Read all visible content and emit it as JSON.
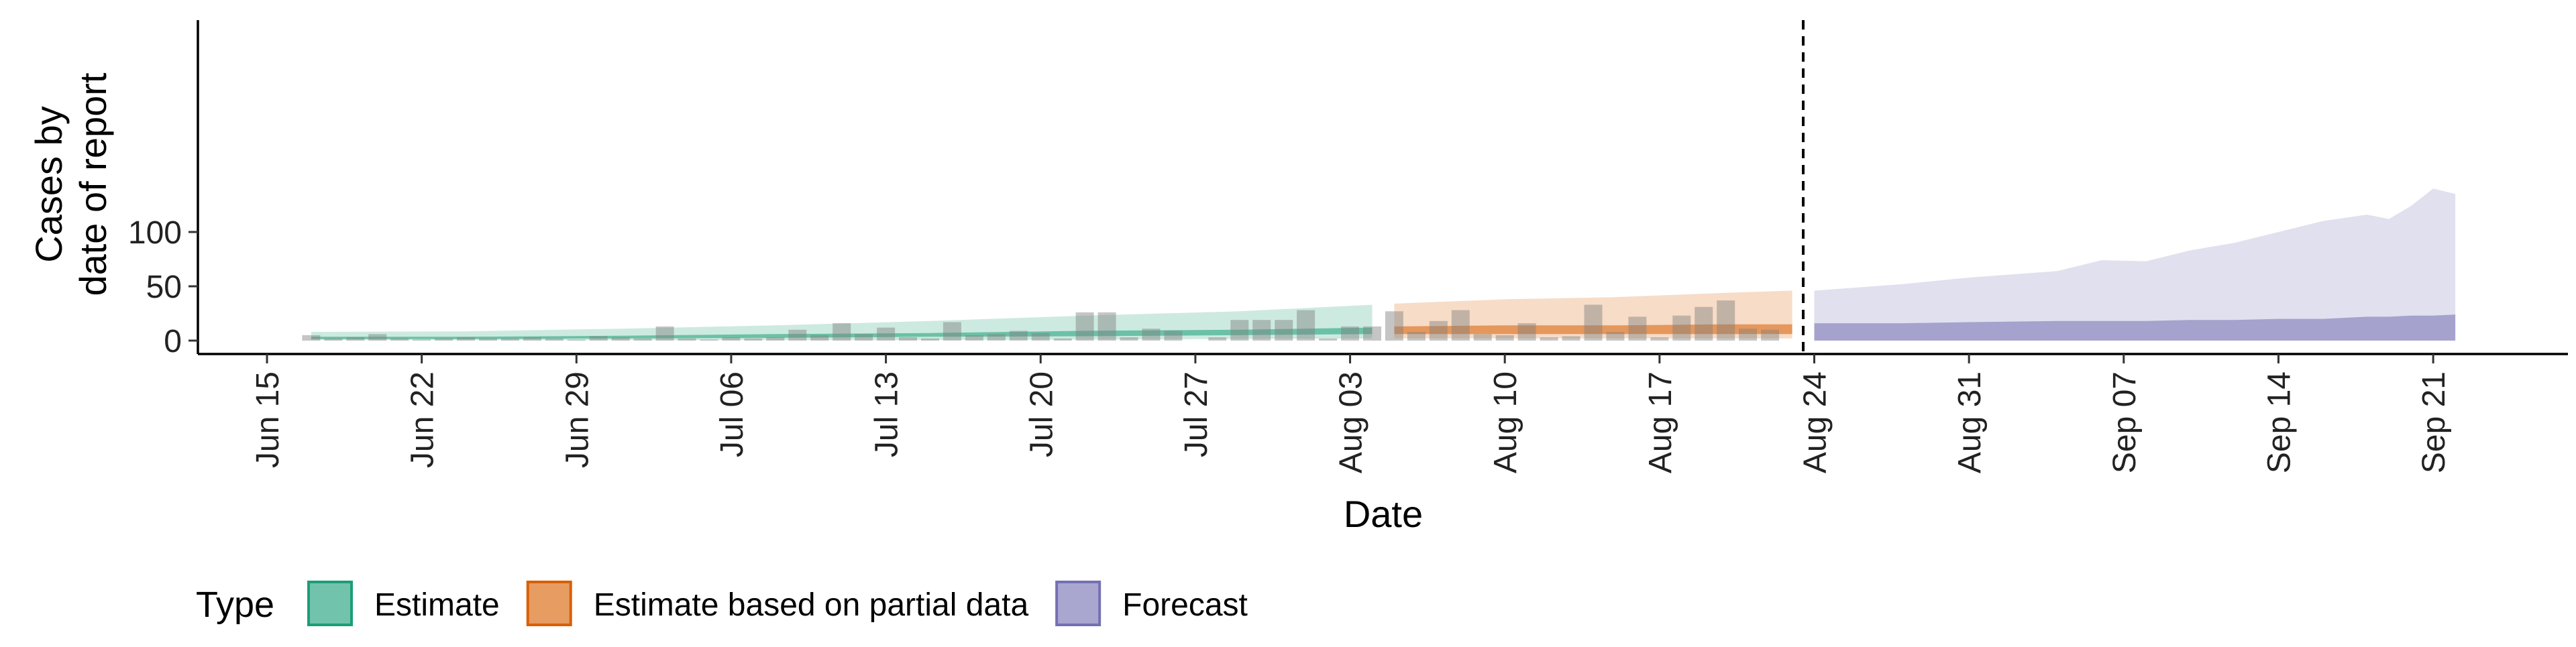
{
  "chart_data": {
    "type": "area",
    "xlabel": "Date",
    "ylabel": [
      "Cases by",
      "date of report"
    ],
    "ylim": [
      0,
      145
    ],
    "yticks": [
      0,
      50,
      100
    ],
    "x_start": "Jun 15",
    "xticks": [
      "Jun 15",
      "Jun 22",
      "Jun 29",
      "Jul 06",
      "Jul 13",
      "Jul 20",
      "Jul 27",
      "Aug 03",
      "Aug 10",
      "Aug 17",
      "Aug 24",
      "Aug 31",
      "Sep 07",
      "Sep 14",
      "Sep 21"
    ],
    "grid": false,
    "forecast_start_line": "Aug 23",
    "legend": {
      "title": "Type",
      "position": "bottom-left",
      "entries": [
        {
          "label": "Estimate",
          "color": "#1b9e77"
        },
        {
          "label": "Estimate based on partial data",
          "color": "#d95f02"
        },
        {
          "label": "Forecast",
          "color": "#7570b3"
        }
      ]
    },
    "bar_color": "#7f7f7f",
    "reported_cases": {
      "dates": [
        "Jun 17",
        "Jun 18",
        "Jun 19",
        "Jun 20",
        "Jun 21",
        "Jun 22",
        "Jun 23",
        "Jun 24",
        "Jun 25",
        "Jun 26",
        "Jun 27",
        "Jun 28",
        "Jun 29",
        "Jun 30",
        "Jul 01",
        "Jul 02",
        "Jul 03",
        "Jul 04",
        "Jul 05",
        "Jul 06",
        "Jul 07",
        "Jul 08",
        "Jul 09",
        "Jul 10",
        "Jul 11",
        "Jul 12",
        "Jul 13",
        "Jul 14",
        "Jul 15",
        "Jul 16",
        "Jul 17",
        "Jul 18",
        "Jul 19",
        "Jul 20",
        "Jul 21",
        "Jul 22",
        "Jul 23",
        "Jul 24",
        "Jul 25",
        "Jul 26",
        "Jul 27",
        "Jul 28",
        "Jul 29",
        "Jul 30",
        "Jul 31",
        "Aug 01",
        "Aug 02",
        "Aug 03",
        "Aug 04",
        "Aug 05",
        "Aug 06",
        "Aug 07",
        "Aug 08",
        "Aug 09",
        "Aug 10",
        "Aug 11",
        "Aug 12",
        "Aug 13",
        "Aug 14",
        "Aug 15",
        "Aug 16",
        "Aug 17",
        "Aug 18",
        "Aug 19",
        "Aug 20",
        "Aug 21",
        "Aug 22"
      ],
      "values": [
        5,
        2,
        3,
        6,
        2,
        1,
        2,
        3,
        2,
        2,
        3,
        2,
        1,
        4,
        3,
        2,
        13,
        2,
        1,
        3,
        2,
        3,
        10,
        5,
        16,
        6,
        12,
        3,
        2,
        17,
        5,
        6,
        9,
        7,
        2,
        26,
        26,
        3,
        11,
        9,
        0,
        3,
        19,
        19,
        19,
        28,
        2,
        13,
        13,
        27,
        8,
        18,
        28,
        6,
        5,
        16,
        3,
        4,
        33,
        8,
        22,
        3,
        23,
        31,
        37,
        11,
        10
      ]
    },
    "series": [
      {
        "name": "Estimate",
        "dates": [
          "Jun 17",
          "Jun 24",
          "Jul 01",
          "Jul 08",
          "Jul 15",
          "Jul 22",
          "Jul 29",
          "Aug 04"
        ],
        "upper_90": [
          8,
          8.5,
          11,
          14,
          18,
          23,
          27,
          33
        ],
        "lower_90": [
          0.5,
          0.5,
          0.5,
          0.5,
          0.5,
          1,
          1.5,
          2
        ],
        "upper_50": [
          3.5,
          3.5,
          4.5,
          6,
          7,
          9,
          10,
          12
        ],
        "lower_50": [
          1.5,
          1.5,
          2,
          2.5,
          3.5,
          4,
          5,
          6
        ]
      },
      {
        "name": "Estimate based on partial data",
        "dates": [
          "Aug 05",
          "Aug 10",
          "Aug 15",
          "Aug 20",
          "Aug 23"
        ],
        "upper_90": [
          34,
          38,
          40,
          44,
          46
        ],
        "lower_90": [
          2,
          2,
          2,
          2,
          2
        ],
        "upper_50": [
          13,
          14,
          14,
          15,
          15
        ],
        "lower_50": [
          6,
          6,
          6,
          6,
          6
        ]
      },
      {
        "name": "Forecast",
        "dates": [
          "Aug 24",
          "Aug 28",
          "Aug 31",
          "Sep 04",
          "Sep 06",
          "Sep 08",
          "Sep 10",
          "Sep 12",
          "Sep 14",
          "Sep 16",
          "Sep 18",
          "Sep 19",
          "Sep 20",
          "Sep 21",
          "Sep 22"
        ],
        "upper_90": [
          46,
          52,
          58,
          64,
          74,
          73,
          83,
          90,
          100,
          110,
          116,
          112,
          124,
          140,
          135
        ],
        "lower_90": [
          0,
          0,
          0,
          0,
          0,
          0,
          0,
          0,
          0,
          0,
          0,
          0,
          0,
          0,
          0
        ],
        "upper_50": [
          16,
          16,
          17,
          18,
          18,
          18,
          19,
          19,
          20,
          20,
          22,
          22,
          23,
          23,
          24
        ],
        "lower_50": [
          0,
          0,
          0,
          0,
          0,
          0,
          0,
          0,
          0,
          0,
          0,
          0,
          0,
          0,
          0
        ]
      }
    ]
  }
}
